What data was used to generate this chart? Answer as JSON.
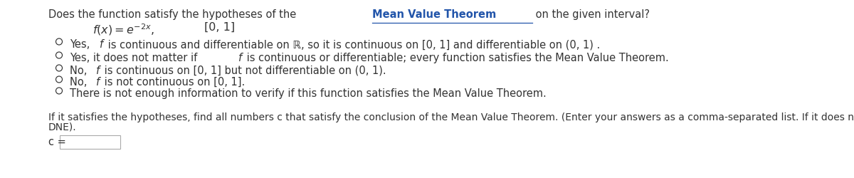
{
  "background_color": "#ffffff",
  "text_color": "#333333",
  "link_color": "#2255aa",
  "font_size": 10.5,
  "title_part1": "Does the function satisfy the hypotheses of the ",
  "title_part2": "Mean Value Theorem",
  "title_part3": " on the given interval?",
  "options": [
    "Yes, f is continuous and differentiable on ℝ, so it is continuous on [0, 1] and differentiable on (0, 1) .",
    "Yes, it does not matter if f is continuous or differentiable; every function satisfies the Mean Value Theorem.",
    "No, f is continuous on [0, 1] but not differentiable on (0, 1).",
    "No, f is not continuous on [0, 1].",
    "There is not enough information to verify if this function satisfies the Mean Value Theorem."
  ],
  "bottom_text_line1": "If it satisfies the hypotheses, find all numbers c that satisfy the conclusion of the Mean Value Theorem. (Enter your answers as a comma-separated list. If it does not satisfy the hypotheses, enter",
  "bottom_text_line2": "DNE).",
  "input_label": "c ="
}
